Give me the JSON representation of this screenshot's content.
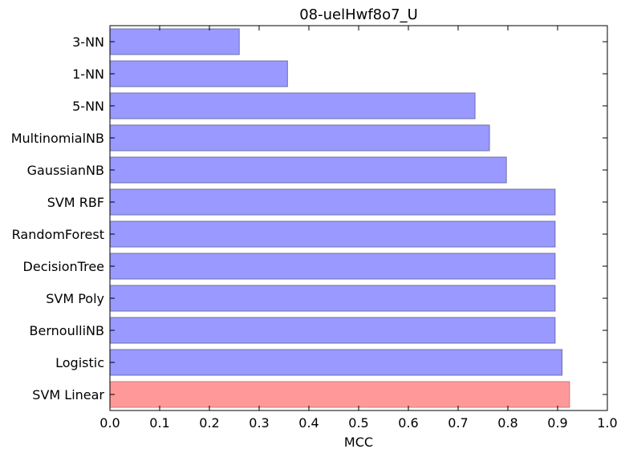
{
  "chart_data": {
    "type": "bar",
    "orientation": "horizontal",
    "title": "08-uelHwf8o7_U",
    "xlabel": "MCC",
    "ylabel": "",
    "xlim": [
      0.0,
      1.0
    ],
    "xticks": [
      "0.0",
      "0.1",
      "0.2",
      "0.3",
      "0.4",
      "0.5",
      "0.6",
      "0.7",
      "0.8",
      "0.9",
      "1.0"
    ],
    "grid": false,
    "categories": [
      "3-NN",
      "1-NN",
      "5-NN",
      "MultinomialNB",
      "GaussianNB",
      "SVM RBF",
      "RandomForest",
      "DecisionTree",
      "SVM Poly",
      "BernoulliNB",
      "Logistic",
      "SVM Linear"
    ],
    "values": [
      0.26,
      0.357,
      0.734,
      0.763,
      0.797,
      0.895,
      0.895,
      0.895,
      0.895,
      0.895,
      0.909,
      0.924
    ],
    "highlight_index": 11,
    "colors": {
      "bar": "#9999ff",
      "bar_edge": "#6f6fa8",
      "highlight": "#ff9999",
      "highlight_edge": "#cc7a7a",
      "axis": "#000000"
    }
  }
}
